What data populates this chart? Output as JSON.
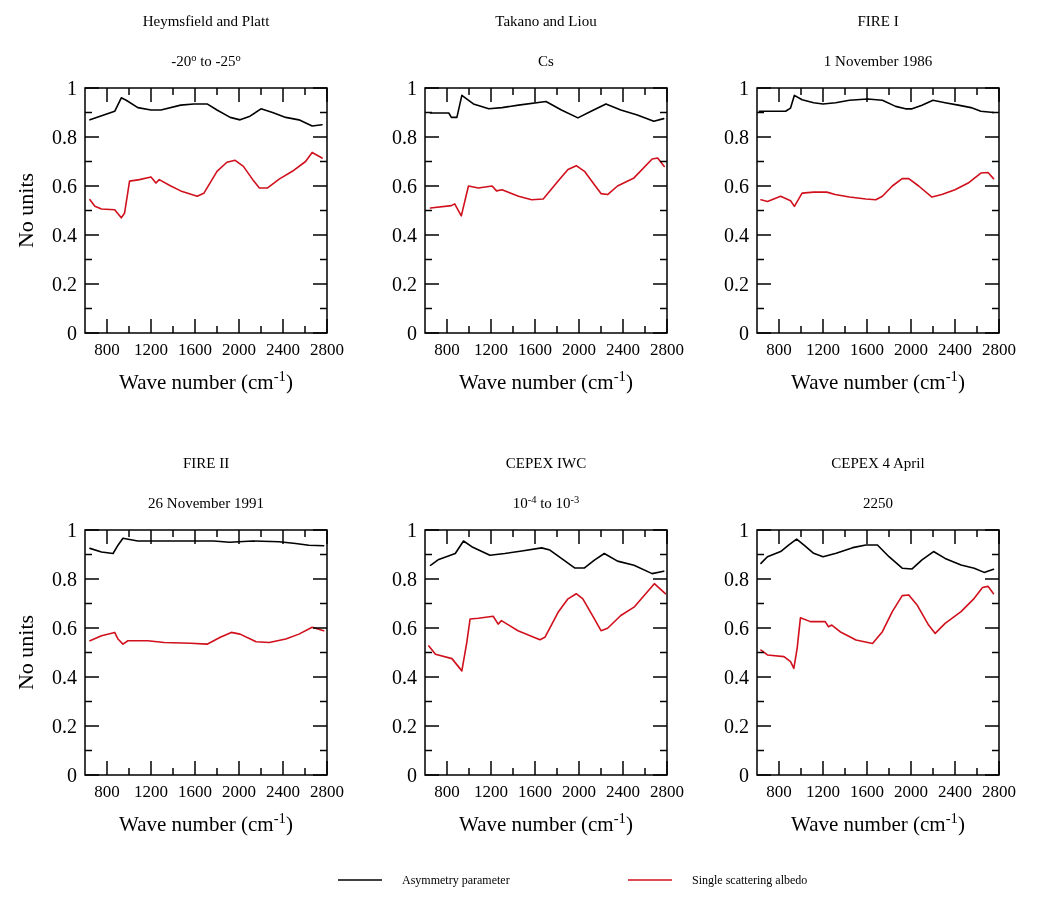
{
  "chart_data": [
    {
      "type": "line",
      "title": "Heymsfield and Platt",
      "subtitle": "-20$^{o}$ to -25$^{o}$",
      "ylabel": "No units",
      "xlabel": "Wave number (cm$^{-1}$)",
      "xlim": [
        600,
        2800
      ],
      "ylim": [
        0,
        1
      ],
      "xticks": [
        800,
        {
          "value": 1000,
          "label": null
        },
        1200,
        {
          "value": 1400,
          "label": null
        },
        1600,
        {
          "value": 1800,
          "label": null
        },
        2000,
        {
          "value": 2200,
          "label": null
        },
        2400,
        {
          "value": 2600,
          "label": null
        },
        2800
      ],
      "yticks": [
        0,
        {
          "value": 0.1,
          "label": null
        },
        0.2,
        {
          "value": 0.3,
          "label": null
        },
        0.4,
        {
          "value": 0.5,
          "label": null
        },
        0.6,
        {
          "value": 0.7,
          "label": null
        },
        0.8,
        {
          "value": 0.9,
          "label": null
        },
        1
      ],
      "grid": false,
      "line_style": "solid",
      "marker": "none",
      "legend": "bottom",
      "series": [
        {
          "name": "Asymmetry parameter",
          "color": "#000000",
          "x": [
            645,
            870,
            930,
            975,
            1080,
            1200,
            1290,
            1470,
            1590,
            1710,
            1800,
            1920,
            2010,
            2100,
            2200,
            2305,
            2425,
            2545,
            2665,
            2755
          ],
          "values": [
            0.87,
            0.905,
            0.96,
            0.95,
            0.92,
            0.91,
            0.91,
            0.93,
            0.935,
            0.935,
            0.91,
            0.88,
            0.87,
            0.885,
            0.915,
            0.9,
            0.88,
            0.87,
            0.845,
            0.85
          ]
        },
        {
          "name": "Single scattering albedo",
          "color": "#d0101c",
          "x": [
            645,
            690,
            750,
            870,
            930,
            960,
            1005,
            1095,
            1200,
            1245,
            1275,
            1380,
            1470,
            1620,
            1680,
            1800,
            1890,
            1965,
            2040,
            2125,
            2185,
            2260,
            2365,
            2485,
            2605,
            2665,
            2755
          ],
          "values": [
            0.544,
            0.517,
            0.506,
            0.503,
            0.47,
            0.49,
            0.62,
            0.626,
            0.637,
            0.612,
            0.626,
            0.6,
            0.58,
            0.558,
            0.57,
            0.66,
            0.697,
            0.705,
            0.68,
            0.626,
            0.592,
            0.592,
            0.628,
            0.66,
            0.7,
            0.737,
            0.714
          ]
        }
      ]
    },
    {
      "type": "line",
      "title": "Takano and Liou",
      "subtitle": "Cs",
      "xlabel": "Wave number (cm$^{-1}$)",
      "xlim": [
        600,
        2800
      ],
      "ylim": [
        0,
        1
      ],
      "xticks": [
        800,
        {
          "value": 1000,
          "label": null
        },
        1200,
        {
          "value": 1400,
          "label": null
        },
        1600,
        {
          "value": 1800,
          "label": null
        },
        2000,
        {
          "value": 2200,
          "label": null
        },
        2400,
        {
          "value": 2600,
          "label": null
        },
        2800
      ],
      "yticks": [
        0,
        {
          "value": 0.1,
          "label": null
        },
        0.2,
        {
          "value": 0.3,
          "label": null
        },
        0.4,
        {
          "value": 0.5,
          "label": null
        },
        0.6,
        {
          "value": 0.7,
          "label": null
        },
        0.8,
        {
          "value": 0.9,
          "label": null
        },
        1
      ],
      "grid": false,
      "line_style": "solid",
      "marker": "none",
      "series": [
        {
          "color": "#000000",
          "x": [
            650,
            816,
            840,
            890,
            935,
            1040,
            1180,
            1300,
            1450,
            1700,
            1840,
            1990,
            2110,
            2245,
            2380,
            2530,
            2680,
            2770
          ],
          "values": [
            0.898,
            0.898,
            0.88,
            0.88,
            0.97,
            0.935,
            0.915,
            0.92,
            0.93,
            0.945,
            0.91,
            0.878,
            0.905,
            0.935,
            0.91,
            0.89,
            0.864,
            0.875
          ]
        },
        {
          "color": "#d0101c",
          "x": [
            650,
            840,
            870,
            930,
            995,
            1085,
            1210,
            1250,
            1300,
            1450,
            1570,
            1675,
            1810,
            1900,
            1975,
            2050,
            2140,
            2200,
            2260,
            2350,
            2500,
            2665,
            2715,
            2775
          ],
          "values": [
            0.51,
            0.52,
            0.527,
            0.478,
            0.6,
            0.592,
            0.6,
            0.58,
            0.585,
            0.558,
            0.544,
            0.547,
            0.62,
            0.667,
            0.683,
            0.66,
            0.605,
            0.569,
            0.565,
            0.6,
            0.633,
            0.71,
            0.714,
            0.68
          ]
        }
      ]
    },
    {
      "type": "line",
      "title": "FIRE I",
      "subtitle": "1 November 1986",
      "xlabel": "Wave number (cm$^{-1}$)",
      "xlim": [
        600,
        2800
      ],
      "ylim": [
        0,
        1
      ],
      "xticks": [
        800,
        {
          "value": 1000,
          "label": null
        },
        1200,
        {
          "value": 1400,
          "label": null
        },
        1600,
        {
          "value": 1800,
          "label": null
        },
        2000,
        {
          "value": 2200,
          "label": null
        },
        2400,
        {
          "value": 2600,
          "label": null
        },
        2800
      ],
      "yticks": [
        0,
        {
          "value": 0.1,
          "label": null
        },
        0.2,
        {
          "value": 0.3,
          "label": null
        },
        0.4,
        {
          "value": 0.5,
          "label": null
        },
        0.6,
        {
          "value": 0.7,
          "label": null
        },
        0.8,
        {
          "value": 0.9,
          "label": null
        },
        1
      ],
      "grid": false,
      "line_style": "solid",
      "marker": "none",
      "series": [
        {
          "color": "#000000",
          "x": [
            621,
            860,
            905,
            940,
            1010,
            1115,
            1200,
            1315,
            1440,
            1605,
            1740,
            1860,
            1950,
            2010,
            2100,
            2200,
            2310,
            2430,
            2545,
            2635,
            2750
          ],
          "values": [
            0.905,
            0.905,
            0.918,
            0.97,
            0.952,
            0.94,
            0.935,
            0.94,
            0.95,
            0.955,
            0.95,
            0.925,
            0.915,
            0.915,
            0.93,
            0.95,
            0.94,
            0.93,
            0.92,
            0.905,
            0.9
          ]
        },
        {
          "color": "#d0101c",
          "x": [
            636,
            695,
            815,
            905,
            940,
            1010,
            1115,
            1235,
            1310,
            1440,
            1590,
            1680,
            1740,
            1830,
            1920,
            1980,
            2070,
            2190,
            2280,
            2400,
            2520,
            2635,
            2700,
            2750
          ],
          "values": [
            0.544,
            0.537,
            0.558,
            0.54,
            0.517,
            0.571,
            0.575,
            0.575,
            0.565,
            0.555,
            0.547,
            0.544,
            0.558,
            0.6,
            0.63,
            0.63,
            0.6,
            0.555,
            0.565,
            0.585,
            0.612,
            0.653,
            0.655,
            0.63
          ]
        }
      ]
    },
    {
      "type": "line",
      "title": "FIRE II",
      "subtitle": "26 November 1991",
      "ylabel": "No units",
      "xlabel": "Wave number (cm$^{-1}$)",
      "xlim": [
        600,
        2800
      ],
      "ylim": [
        0,
        1
      ],
      "xticks": [
        800,
        {
          "value": 1000,
          "label": null
        },
        1200,
        {
          "value": 1400,
          "label": null
        },
        1600,
        {
          "value": 1800,
          "label": null
        },
        2000,
        {
          "value": 2200,
          "label": null
        },
        2400,
        {
          "value": 2600,
          "label": null
        },
        2800
      ],
      "yticks": [
        0,
        {
          "value": 0.1,
          "label": null
        },
        0.2,
        {
          "value": 0.3,
          "label": null
        },
        0.4,
        {
          "value": 0.5,
          "label": null
        },
        0.6,
        {
          "value": 0.7,
          "label": null
        },
        0.8,
        {
          "value": 0.9,
          "label": null
        },
        1
      ],
      "grid": false,
      "line_style": "solid",
      "marker": "none",
      "series": [
        {
          "color": "#000000",
          "x": [
            645,
            750,
            855,
            900,
            945,
            1080,
            1320,
            1770,
            1915,
            2125,
            2365,
            2515,
            2635,
            2770
          ],
          "values": [
            0.925,
            0.91,
            0.904,
            0.938,
            0.966,
            0.955,
            0.955,
            0.955,
            0.95,
            0.955,
            0.952,
            0.945,
            0.938,
            0.936
          ]
        },
        {
          "color": "#d0101c",
          "x": [
            645,
            750,
            870,
            900,
            945,
            990,
            1170,
            1320,
            1560,
            1710,
            1830,
            1930,
            2010,
            2155,
            2275,
            2425,
            2545,
            2665,
            2770
          ],
          "values": [
            0.548,
            0.568,
            0.582,
            0.555,
            0.534,
            0.548,
            0.548,
            0.541,
            0.538,
            0.534,
            0.562,
            0.582,
            0.575,
            0.544,
            0.541,
            0.555,
            0.575,
            0.603,
            0.589
          ]
        }
      ]
    },
    {
      "type": "line",
      "title": "CEPEX IWC",
      "subtitle": "10$^{-4}$ to 10$^{-3}$",
      "xlabel": "Wave number (cm$^{-1}$)",
      "xlim": [
        600,
        2800
      ],
      "ylim": [
        0,
        1
      ],
      "xticks": [
        800,
        {
          "value": 1000,
          "label": null
        },
        1200,
        {
          "value": 1400,
          "label": null
        },
        1600,
        {
          "value": 1800,
          "label": null
        },
        2000,
        {
          "value": 2200,
          "label": null
        },
        2400,
        {
          "value": 2600,
          "label": null
        },
        2800
      ],
      "yticks": [
        0,
        {
          "value": 0.1,
          "label": null
        },
        0.2,
        {
          "value": 0.3,
          "label": null
        },
        0.4,
        {
          "value": 0.5,
          "label": null
        },
        0.6,
        {
          "value": 0.7,
          "label": null
        },
        0.8,
        {
          "value": 0.9,
          "label": null
        },
        1
      ],
      "grid": false,
      "line_style": "solid",
      "marker": "none",
      "series": [
        {
          "color": "#000000",
          "x": [
            650,
            725,
            875,
            950,
            1025,
            1190,
            1325,
            1480,
            1660,
            1735,
            1840,
            1960,
            2050,
            2140,
            2230,
            2350,
            2500,
            2665,
            2770
          ],
          "values": [
            0.856,
            0.88,
            0.904,
            0.955,
            0.932,
            0.897,
            0.904,
            0.914,
            0.927,
            0.918,
            0.884,
            0.845,
            0.845,
            0.877,
            0.904,
            0.873,
            0.856,
            0.822,
            0.832
          ]
        },
        {
          "color": "#d0101c",
          "x": [
            635,
            695,
            845,
            935,
            980,
            1010,
            1085,
            1220,
            1265,
            1295,
            1445,
            1645,
            1690,
            1810,
            1900,
            1975,
            2035,
            2140,
            2200,
            2260,
            2380,
            2500,
            2620,
            2685,
            2785
          ],
          "values": [
            0.527,
            0.493,
            0.475,
            0.425,
            0.541,
            0.637,
            0.64,
            0.648,
            0.616,
            0.63,
            0.589,
            0.552,
            0.562,
            0.664,
            0.719,
            0.74,
            0.719,
            0.637,
            0.589,
            0.599,
            0.651,
            0.685,
            0.747,
            0.781,
            0.74
          ]
        }
      ]
    },
    {
      "type": "line",
      "title": "CEPEX 4 April",
      "subtitle": "2250",
      "xlabel": "Wave number (cm$^{-1}$)",
      "xlim": [
        600,
        2800
      ],
      "ylim": [
        0,
        1
      ],
      "xticks": [
        800,
        {
          "value": 1000,
          "label": null
        },
        1200,
        {
          "value": 1400,
          "label": null
        },
        1600,
        {
          "value": 1800,
          "label": null
        },
        2000,
        {
          "value": 2200,
          "label": null
        },
        2400,
        {
          "value": 2600,
          "label": null
        },
        2800
      ],
      "yticks": [
        0,
        {
          "value": 0.1,
          "label": null
        },
        0.2,
        {
          "value": 0.3,
          "label": null
        },
        0.4,
        {
          "value": 0.5,
          "label": null
        },
        0.6,
        {
          "value": 0.7,
          "label": null
        },
        0.8,
        {
          "value": 0.9,
          "label": null
        },
        1
      ],
      "grid": false,
      "line_style": "solid",
      "marker": "none",
      "series": [
        {
          "color": "#000000",
          "x": [
            636,
            695,
            815,
            890,
            960,
            1025,
            1115,
            1200,
            1320,
            1470,
            1590,
            1695,
            1800,
            1920,
            2010,
            2100,
            2205,
            2310,
            2455,
            2575,
            2665,
            2750
          ],
          "values": [
            0.864,
            0.891,
            0.912,
            0.939,
            0.963,
            0.939,
            0.905,
            0.891,
            0.905,
            0.928,
            0.939,
            0.939,
            0.891,
            0.844,
            0.841,
            0.878,
            0.912,
            0.884,
            0.857,
            0.844,
            0.827,
            0.84
          ]
        },
        {
          "color": "#d0101c",
          "x": [
            636,
            695,
            845,
            905,
            935,
            965,
            995,
            1085,
            1220,
            1250,
            1280,
            1355,
            1500,
            1650,
            1740,
            1830,
            1920,
            1980,
            2055,
            2160,
            2220,
            2310,
            2455,
            2575,
            2650,
            2700,
            2750
          ],
          "values": [
            0.51,
            0.49,
            0.483,
            0.463,
            0.435,
            0.517,
            0.642,
            0.626,
            0.626,
            0.605,
            0.612,
            0.585,
            0.551,
            0.537,
            0.585,
            0.667,
            0.732,
            0.735,
            0.694,
            0.612,
            0.578,
            0.619,
            0.667,
            0.721,
            0.765,
            0.77,
            0.74
          ]
        }
      ]
    }
  ]
}
